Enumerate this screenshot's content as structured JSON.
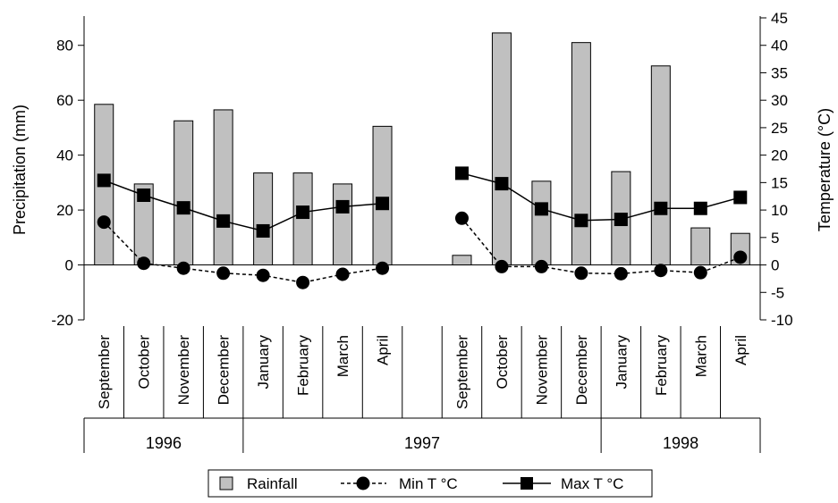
{
  "chart_data": {
    "type": "bar+line",
    "categories": [
      "September",
      "October",
      "November",
      "December",
      "January",
      "February",
      "March",
      "April",
      "",
      "September",
      "October",
      "November",
      "December",
      "January",
      "February",
      "March",
      "April"
    ],
    "years": [
      {
        "label": "1996",
        "from": 0,
        "to": 3
      },
      {
        "label": "1997",
        "from": 4,
        "to": 12
      },
      {
        "label": "1998",
        "from": 13,
        "to": 16
      }
    ],
    "ylabel": "Precipitation (mm)",
    "y2label": "Temperature (°C)",
    "ylim": [
      -20,
      90
    ],
    "y2lim": [
      -10,
      45
    ],
    "yticks": [
      -20,
      0,
      20,
      40,
      60,
      80
    ],
    "y2ticks": [
      -10,
      -5,
      0,
      5,
      10,
      15,
      20,
      25,
      30,
      35,
      40,
      45
    ],
    "series": [
      {
        "name": "Rainfall",
        "kind": "bar",
        "axis": "left",
        "color": "#c0c0c0",
        "values": [
          58.5,
          29.5,
          52.5,
          56.5,
          33.5,
          33.5,
          29.5,
          50.5,
          null,
          3.5,
          84.5,
          30.5,
          81,
          34,
          72.5,
          13.5,
          11.5
        ]
      },
      {
        "name": "Min T °C",
        "kind": "line",
        "style": "dashed",
        "marker": "circle",
        "axis": "right",
        "values": [
          7.8,
          0.3,
          -0.6,
          -1.5,
          -1.9,
          -3.2,
          -1.7,
          -0.6,
          null,
          8.5,
          -0.3,
          -0.3,
          -1.5,
          -1.6,
          -1.0,
          -1.4,
          1.4
        ]
      },
      {
        "name": "Max T °C",
        "kind": "line",
        "style": "solid",
        "marker": "square",
        "axis": "right",
        "values": [
          15.4,
          12.7,
          10.4,
          8.0,
          6.2,
          9.6,
          10.6,
          11.2,
          null,
          16.7,
          14.8,
          10.2,
          8.1,
          8.3,
          10.3,
          10.3,
          12.3
        ]
      }
    ]
  }
}
